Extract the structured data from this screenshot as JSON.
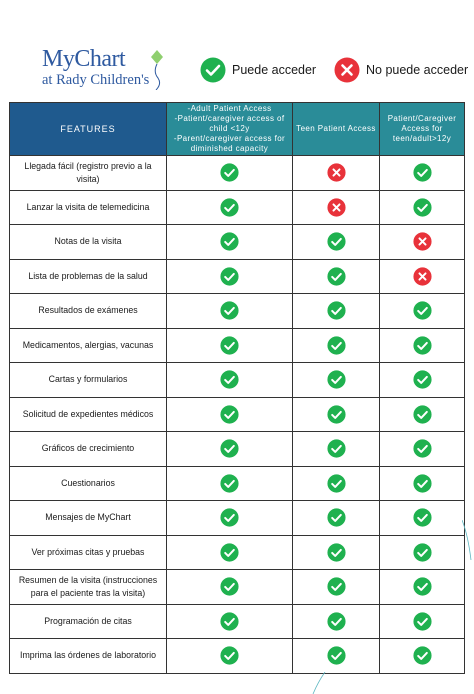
{
  "logo": {
    "line1": "MyChart",
    "line2": "at Rady Children's"
  },
  "legend": [
    {
      "icon": "check-icon",
      "label": "Puede acceder"
    },
    {
      "icon": "x-icon",
      "label": "No puede acceder"
    }
  ],
  "colors": {
    "check": "#1fb14f",
    "cross": "#e8323a",
    "header_features": "#1f5a8e",
    "header_columns": "#2a8c98",
    "brand": "#2f5aa0"
  },
  "table": {
    "headers": [
      "FEATURES",
      "-Adult Patient Access\n-Patient/caregiver access of child <12y\n-Parent/caregiver access for diminished capacity",
      "Teen Patient Access",
      "Patient/Caregiver Access for teen/adult>12y"
    ],
    "rows": [
      {
        "feature": "Llegada fácil (registro previo a la visita)",
        "access": [
          "check",
          "cross",
          "check"
        ]
      },
      {
        "feature": "Lanzar la visita de telemedicina",
        "access": [
          "check",
          "cross",
          "check"
        ]
      },
      {
        "feature": "Notas de la visita",
        "access": [
          "check",
          "check",
          "cross"
        ]
      },
      {
        "feature": "Lista de problemas de la salud",
        "access": [
          "check",
          "check",
          "cross"
        ]
      },
      {
        "feature": "Resultados de exámenes",
        "access": [
          "check",
          "check",
          "check"
        ]
      },
      {
        "feature": "Medicamentos, alergias, vacunas",
        "access": [
          "check",
          "check",
          "check"
        ]
      },
      {
        "feature": "Cartas y formularios",
        "access": [
          "check",
          "check",
          "check"
        ]
      },
      {
        "feature": "Solicitud de expedientes médicos",
        "access": [
          "check",
          "check",
          "check"
        ]
      },
      {
        "feature": "Gráficos de crecimiento",
        "access": [
          "check",
          "check",
          "check"
        ]
      },
      {
        "feature": "Cuestionarios",
        "access": [
          "check",
          "check",
          "check"
        ]
      },
      {
        "feature": "Mensajes de MyChart",
        "access": [
          "check",
          "check",
          "check"
        ]
      },
      {
        "feature": "Ver próximas citas y pruebas",
        "access": [
          "check",
          "check",
          "check"
        ]
      },
      {
        "feature": "Resumen de la visita (instrucciones para el paciente tras la visita)",
        "access": [
          "check",
          "check",
          "check"
        ]
      },
      {
        "feature": "Programación de citas",
        "access": [
          "check",
          "check",
          "check"
        ]
      },
      {
        "feature": "Imprima las órdenes de laboratorio",
        "access": [
          "check",
          "check",
          "check"
        ]
      }
    ]
  }
}
